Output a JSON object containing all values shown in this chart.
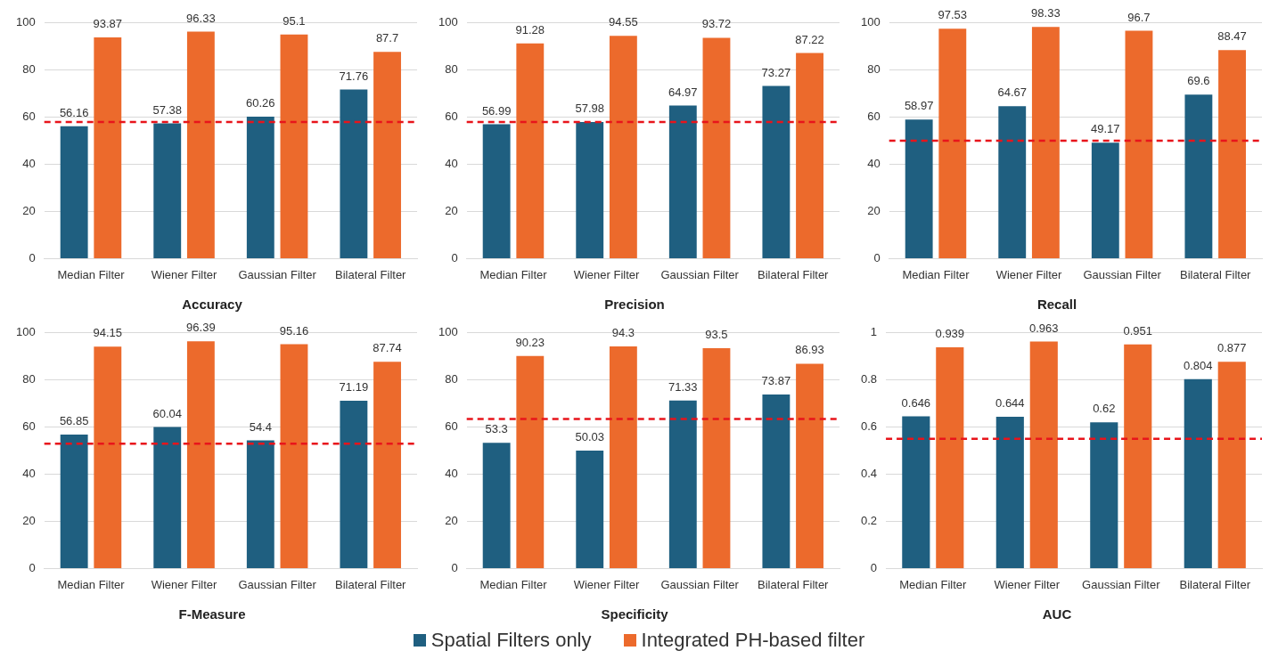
{
  "chart_data": [
    {
      "type": "bar",
      "title": "Accuracy",
      "categories": [
        "Median Filter",
        "Wiener Filter",
        "Gaussian Filter",
        "Bilateral Filter"
      ],
      "series": [
        {
          "color": "#1f5f80",
          "values": [
            56.16,
            57.38,
            60.26,
            71.76
          ]
        },
        {
          "color": "#ec6a2c",
          "values": [
            93.87,
            96.33,
            95.1,
            87.7
          ]
        }
      ],
      "ylim": [
        0,
        100
      ],
      "yticks": [
        0,
        20,
        40,
        60,
        80,
        100
      ],
      "grid": "y",
      "data_labels": true,
      "ref_lines": [
        {
          "axis": "y",
          "value": 58,
          "color": "#e8141b",
          "line_style": "dashed"
        }
      ]
    },
    {
      "type": "bar",
      "title": "Precision",
      "categories": [
        "Median Filter",
        "Wiener Filter",
        "Gaussian Filter",
        "Bilateral Filter"
      ],
      "series": [
        {
          "color": "#1f5f80",
          "values": [
            56.99,
            57.98,
            64.97,
            73.27
          ]
        },
        {
          "color": "#ec6a2c",
          "values": [
            91.28,
            94.55,
            93.72,
            87.22
          ]
        }
      ],
      "ylim": [
        0,
        100
      ],
      "yticks": [
        0,
        20,
        40,
        60,
        80,
        100
      ],
      "grid": "y",
      "data_labels": true,
      "ref_lines": [
        {
          "axis": "y",
          "value": 58,
          "color": "#e8141b",
          "line_style": "dashed"
        }
      ]
    },
    {
      "type": "bar",
      "title": "Recall",
      "categories": [
        "Median Filter",
        "Wiener Filter",
        "Gaussian Filter",
        "Bilateral Filter"
      ],
      "series": [
        {
          "color": "#1f5f80",
          "values": [
            58.97,
            64.67,
            49.17,
            69.6
          ]
        },
        {
          "color": "#ec6a2c",
          "values": [
            97.53,
            98.33,
            96.7,
            88.47
          ]
        }
      ],
      "ylim": [
        0,
        100
      ],
      "yticks": [
        0,
        20,
        40,
        60,
        80,
        100
      ],
      "grid": "y",
      "data_labels": true,
      "ref_lines": [
        {
          "axis": "y",
          "value": 50,
          "color": "#e8141b",
          "line_style": "dashed"
        }
      ]
    },
    {
      "type": "bar",
      "title": "F-Measure",
      "categories": [
        "Median Filter",
        "Wiener Filter",
        "Gaussian Filter",
        "Bilateral Filter"
      ],
      "series": [
        {
          "color": "#1f5f80",
          "values": [
            56.85,
            60.04,
            54.4,
            71.19
          ]
        },
        {
          "color": "#ec6a2c",
          "values": [
            94.15,
            96.39,
            95.16,
            87.74
          ]
        }
      ],
      "ylim": [
        0,
        100
      ],
      "yticks": [
        0,
        20,
        40,
        60,
        80,
        100
      ],
      "grid": "y",
      "data_labels": true,
      "ref_lines": [
        {
          "axis": "y",
          "value": 53,
          "color": "#e8141b",
          "line_style": "dashed"
        }
      ]
    },
    {
      "type": "bar",
      "title": "Specificity",
      "categories": [
        "Median Filter",
        "Wiener Filter",
        "Gaussian Filter",
        "Bilateral Filter"
      ],
      "series": [
        {
          "color": "#1f5f80",
          "values": [
            53.3,
            50.03,
            71.33,
            73.87
          ]
        },
        {
          "color": "#ec6a2c",
          "values": [
            90.23,
            94.3,
            93.5,
            86.93
          ]
        }
      ],
      "ylim": [
        0,
        100
      ],
      "yticks": [
        0,
        20,
        40,
        60,
        80,
        100
      ],
      "grid": "y",
      "data_labels": true,
      "ref_lines": [
        {
          "axis": "y",
          "value": 63.5,
          "color": "#e8141b",
          "line_style": "dashed"
        }
      ]
    },
    {
      "type": "bar",
      "title": "AUC",
      "categories": [
        "Median Filter",
        "Wiener Filter",
        "Gaussian Filter",
        "Bilateral Filter"
      ],
      "series": [
        {
          "name": "Spatial Filters only",
          "color": "#1f5f80",
          "values": [
            0.646,
            0.644,
            0.62,
            0.804
          ]
        },
        {
          "name": "Integrated PH-based filter",
          "color": "#ec6a2c",
          "values": [
            0.939,
            0.963,
            0.951,
            0.877
          ]
        }
      ],
      "ylim": [
        0,
        1
      ],
      "yticks": [
        0,
        0.2,
        0.4,
        0.6,
        0.8,
        1
      ],
      "grid": "y",
      "data_labels": true,
      "legend": "bottom",
      "ref_lines": [
        {
          "axis": "y",
          "value": 0.55,
          "color": "#e8141b",
          "line_style": "dashed"
        }
      ]
    }
  ]
}
